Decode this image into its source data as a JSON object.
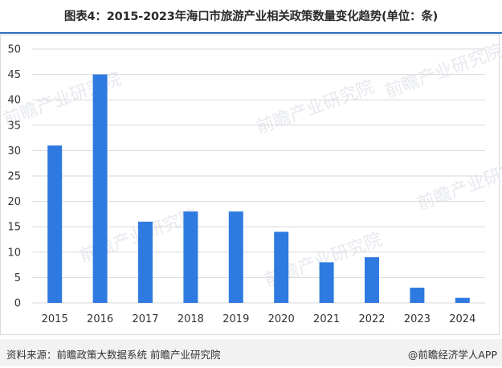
{
  "title": "图表4：2015-2023年海口市旅游产业相关政策数量变化趋势(单位：条)",
  "footer": {
    "source": "资料来源：前瞻政策大数据系统 前瞻产业研究院",
    "brand": "@前瞻经济学人APP"
  },
  "watermark": {
    "text": "前瞻产业研究院"
  },
  "colors": {
    "bar": "#2f7ae0",
    "grid": "#d9d9d9",
    "title_rule": "#2e6fbf"
  },
  "chart_data": {
    "type": "bar",
    "categories": [
      "2015",
      "2016",
      "2017",
      "2018",
      "2019",
      "2020",
      "2021",
      "2022",
      "2023",
      "2024"
    ],
    "values": [
      31,
      45,
      16,
      18,
      18,
      14,
      8,
      9,
      3,
      1
    ],
    "ylim": [
      0,
      50
    ],
    "yticks": [
      0,
      5,
      10,
      15,
      20,
      25,
      30,
      35,
      40,
      45,
      50
    ],
    "grid": true
  }
}
